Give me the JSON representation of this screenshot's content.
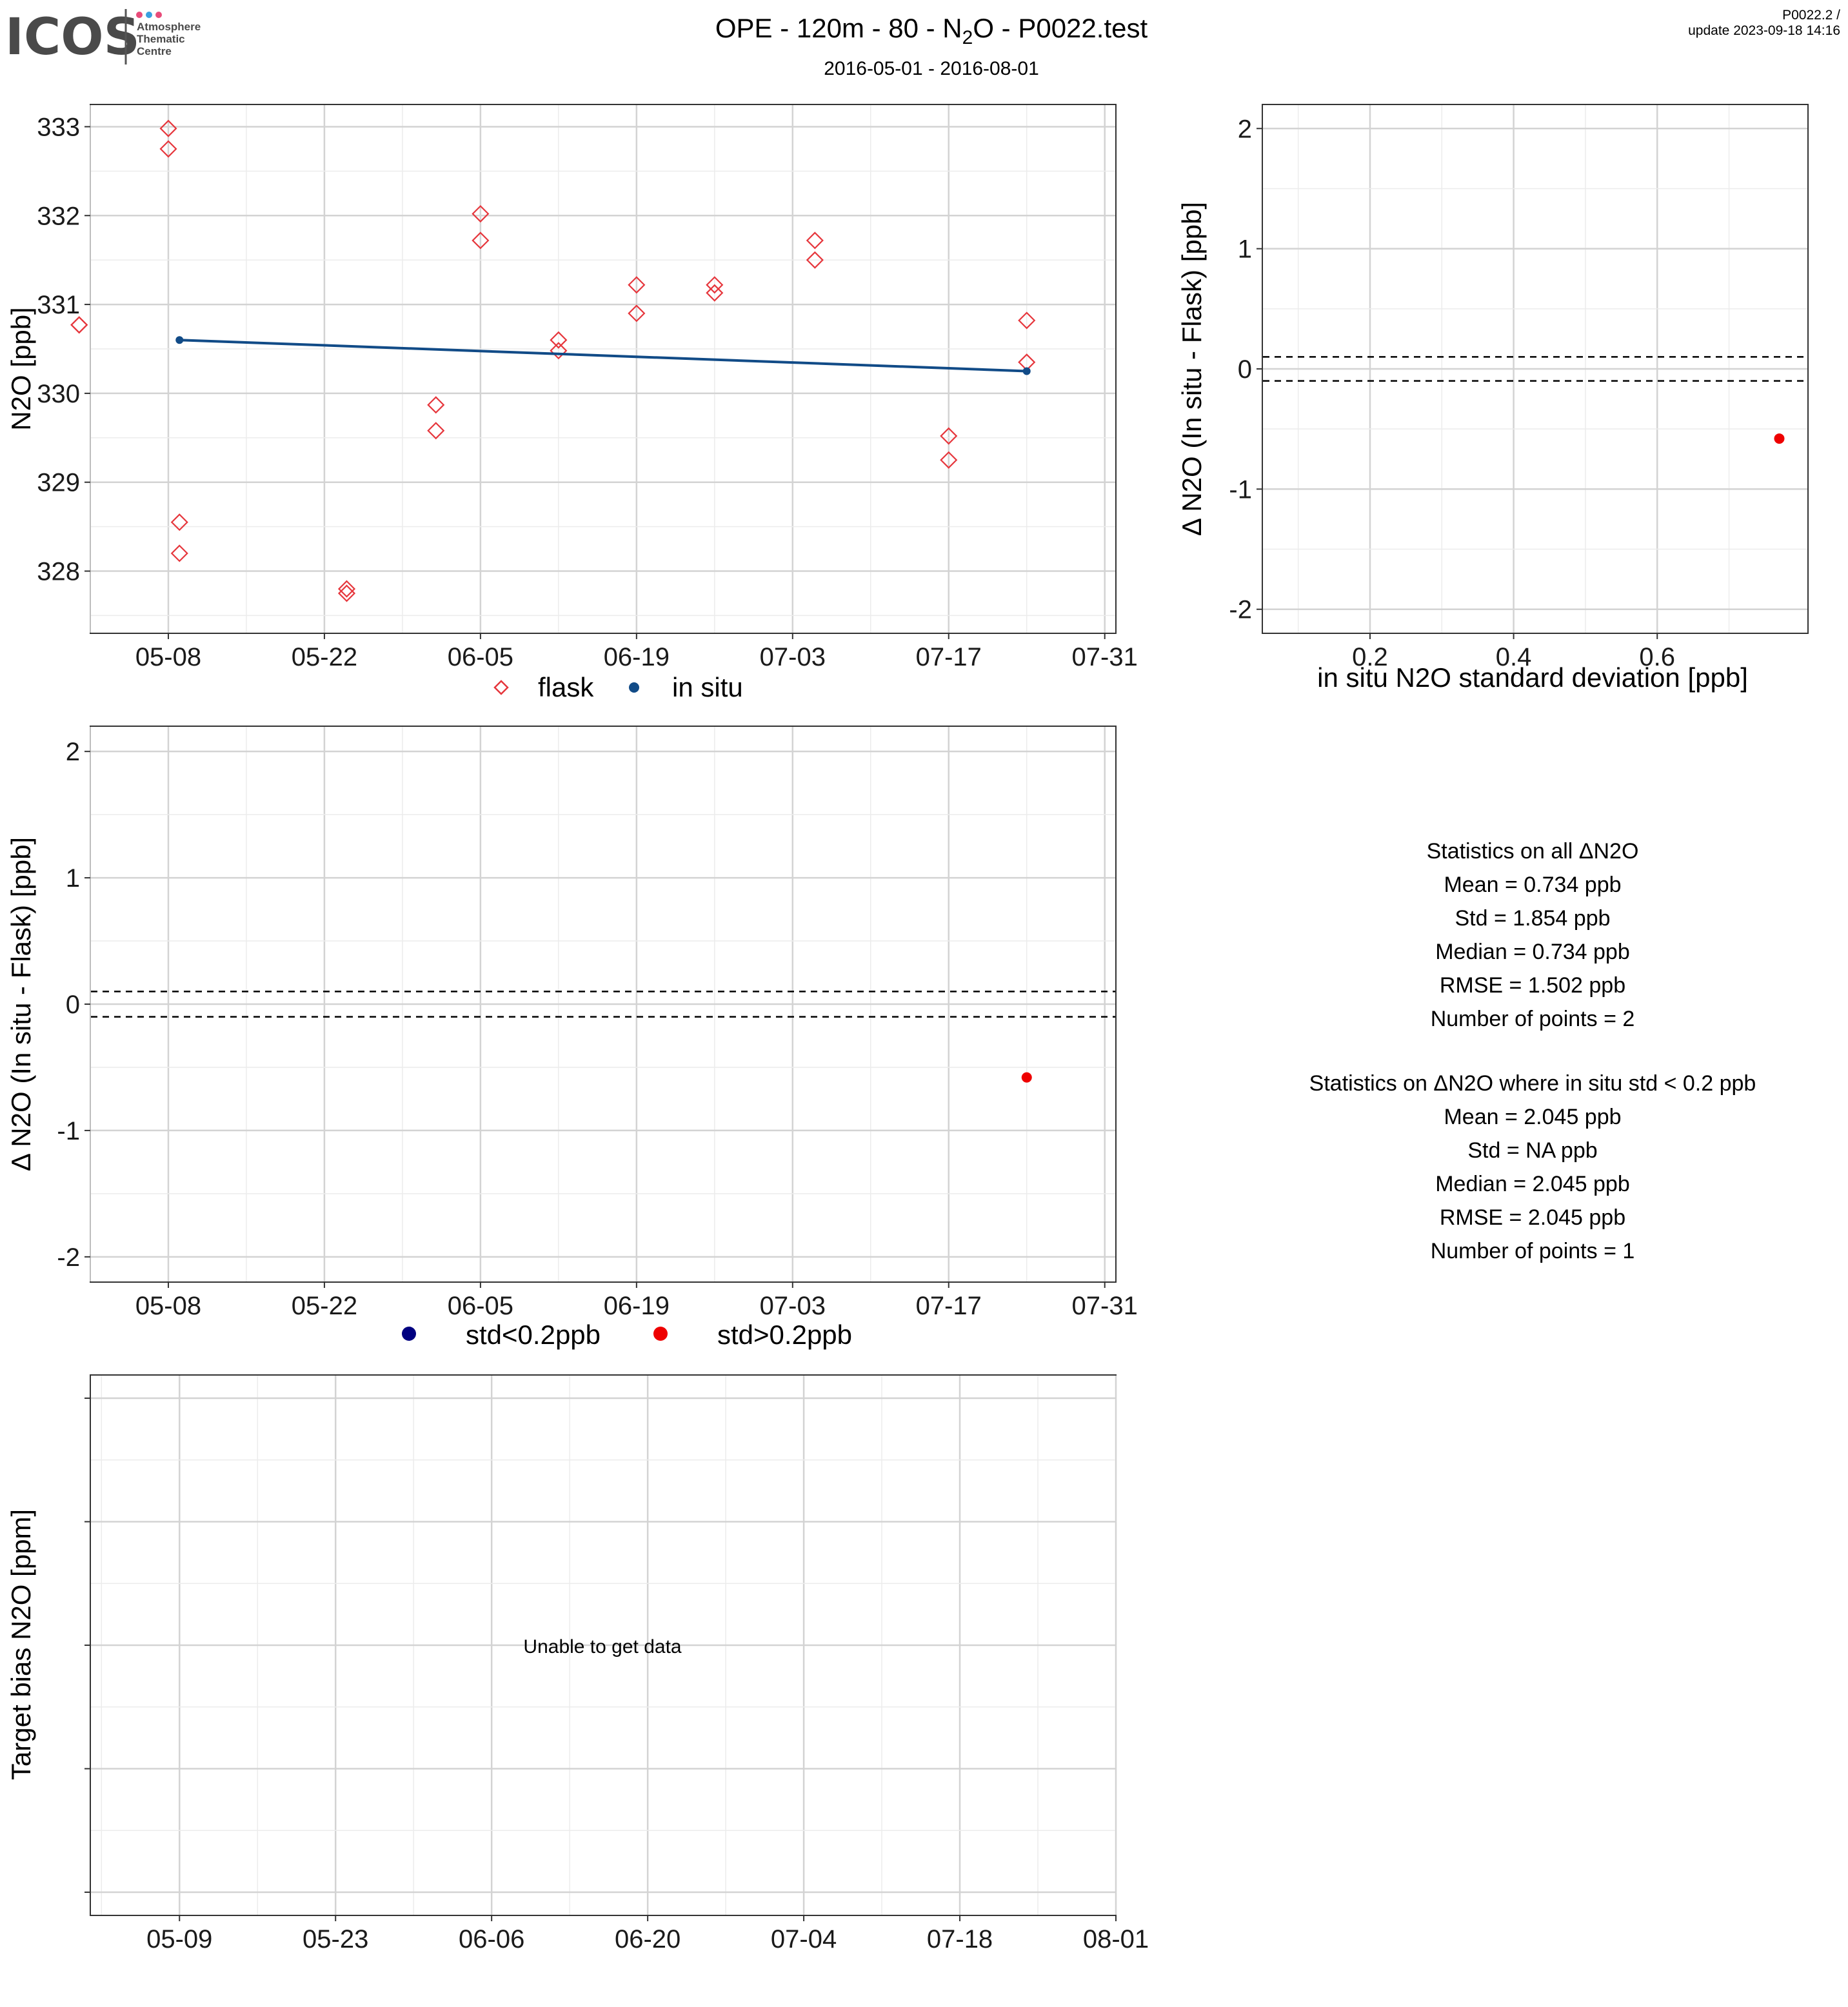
{
  "logo": {
    "wordmark": "ICOS",
    "dots": [
      "#e84c7a",
      "#3aa0e0",
      "#e84c7a"
    ],
    "subtitle_lines": [
      "Atmosphere",
      "Thematic",
      "Centre"
    ]
  },
  "header": {
    "title_pre": "OPE - 120m - 80 - N",
    "title_sub": "2",
    "title_post": "O - P0022.test",
    "date_range": "2016-05-01 - 2016-08-01",
    "version": "P0022.2 /",
    "update": "update  2023-09-18 14:16"
  },
  "colors": {
    "flask": "#e6363c",
    "insitu": "#114b87",
    "red": "#ee0000",
    "navy": "#000080"
  },
  "chart_data": [
    {
      "id": "timeseries",
      "type": "line",
      "ylabel": "N2O [ppb]",
      "xlabel": "",
      "xlim": [
        "2016-05-01",
        "2016-08-01"
      ],
      "ylim": [
        327.3,
        333.25
      ],
      "x_ticks": [
        "2016-05-08",
        "2016-05-22",
        "2016-06-05",
        "2016-06-19",
        "2016-07-03",
        "2016-07-17",
        "2016-07-31"
      ],
      "x_tick_labels": [
        "05-08",
        "05-22",
        "06-05",
        "06-19",
        "07-03",
        "07-17",
        "07-31"
      ],
      "y_ticks": [
        328,
        329,
        330,
        331,
        332,
        333
      ],
      "y_tick_labels": [
        "328",
        "329",
        "330",
        "331",
        "332",
        "333"
      ],
      "grid": true,
      "legend_position": "bottom",
      "legend": [
        "flask",
        "in situ"
      ],
      "series": [
        {
          "name": "flask",
          "marker": "diamond-open",
          "points": [
            [
              "2016-04-30",
              330.77
            ],
            [
              "2016-04-30",
              330.77
            ],
            [
              "2016-05-08",
              332.98
            ],
            [
              "2016-05-08",
              332.75
            ],
            [
              "2016-05-09",
              328.55
            ],
            [
              "2016-05-09",
              328.2
            ],
            [
              "2016-05-24",
              327.8
            ],
            [
              "2016-05-24",
              327.75
            ],
            [
              "2016-06-01",
              329.87
            ],
            [
              "2016-06-01",
              329.58
            ],
            [
              "2016-06-05",
              332.02
            ],
            [
              "2016-06-05",
              331.72
            ],
            [
              "2016-06-12",
              330.6
            ],
            [
              "2016-06-12",
              330.48
            ],
            [
              "2016-06-19",
              331.22
            ],
            [
              "2016-06-19",
              330.9
            ],
            [
              "2016-06-26",
              331.22
            ],
            [
              "2016-06-26",
              331.13
            ],
            [
              "2016-07-05",
              331.72
            ],
            [
              "2016-07-05",
              331.5
            ],
            [
              "2016-07-17",
              329.52
            ],
            [
              "2016-07-17",
              329.25
            ],
            [
              "2016-07-24",
              330.82
            ],
            [
              "2016-07-24",
              330.35
            ]
          ]
        },
        {
          "name": "in situ",
          "marker": "dot",
          "points": [
            [
              "2016-05-09",
              330.6
            ],
            [
              "2016-07-24",
              330.25
            ]
          ]
        }
      ]
    },
    {
      "id": "delta_vs_std",
      "type": "scatter",
      "xlabel": "in situ N2O standard deviation [ppb]",
      "ylabel": "Δ N2O (In situ - Flask) [ppb]",
      "xlim": [
        0.05,
        0.81
      ],
      "ylim": [
        -2.2,
        2.2
      ],
      "x_ticks": [
        0.2,
        0.4,
        0.6
      ],
      "x_tick_labels": [
        "0.2",
        "0.4",
        "0.6"
      ],
      "y_ticks": [
        -2,
        -1,
        0,
        1,
        2
      ],
      "y_tick_labels": [
        "-2",
        "-1",
        "0",
        "1",
        "2"
      ],
      "reference_lines": [
        0.1,
        -0.1
      ],
      "grid": true,
      "series": [
        {
          "name": "std>0.2ppb",
          "points": [
            [
              0.77,
              -0.58
            ]
          ]
        }
      ]
    },
    {
      "id": "delta_timeseries",
      "type": "scatter",
      "xlabel": "",
      "ylabel": "Δ N2O (In situ - Flask) [ppb]",
      "xlim": [
        "2016-05-01",
        "2016-08-01"
      ],
      "ylim": [
        -2.2,
        2.2
      ],
      "x_ticks": [
        "2016-05-08",
        "2016-05-22",
        "2016-06-05",
        "2016-06-19",
        "2016-07-03",
        "2016-07-17",
        "2016-07-31"
      ],
      "x_tick_labels": [
        "05-08",
        "05-22",
        "06-05",
        "06-19",
        "07-03",
        "07-17",
        "07-31"
      ],
      "y_ticks": [
        -2,
        -1,
        0,
        1,
        2
      ],
      "y_tick_labels": [
        "-2",
        "-1",
        "0",
        "1",
        "2"
      ],
      "reference_lines": [
        0.1,
        -0.1
      ],
      "grid": true,
      "legend_position": "bottom",
      "legend": [
        "std<0.2ppb",
        "std>0.2ppb"
      ],
      "series": [
        {
          "name": "std>0.2ppb",
          "points": [
            [
              "2016-07-24",
              -0.58
            ]
          ]
        }
      ]
    },
    {
      "id": "target_bias",
      "type": "line",
      "xlabel": "",
      "ylabel": "Target bias N2O [ppm]",
      "xlim": [
        "2016-05-01",
        "2016-08-01"
      ],
      "x_ticks": [
        "2016-05-09",
        "2016-05-23",
        "2016-06-06",
        "2016-06-20",
        "2016-07-04",
        "2016-07-18",
        "2016-08-01"
      ],
      "x_tick_labels": [
        "05-09",
        "05-23",
        "06-06",
        "06-20",
        "07-04",
        "07-18",
        "08-01"
      ],
      "y_tick_count": 5,
      "grid": true,
      "message": "Unable to get data",
      "series": []
    }
  ],
  "stats": {
    "all": [
      "Statistics on all ΔN2O",
      "Mean =  0.734 ppb",
      "Std =  1.854 ppb",
      "Median =  0.734 ppb",
      "RMSE =  1.502 ppb",
      "Number of points =  2"
    ],
    "filtered": [
      "Statistics on ΔN2O where in situ std < 0.2 ppb",
      "Mean =  2.045 ppb",
      "Std =  NA ppb",
      "Median =  2.045 ppb",
      "RMSE =  2.045 ppb",
      "Number of points =  1"
    ]
  }
}
